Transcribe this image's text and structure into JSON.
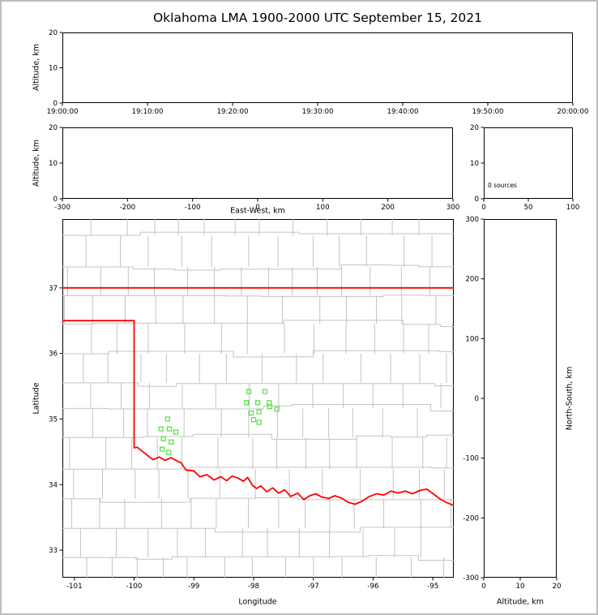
{
  "figure": {
    "title": "Oklahoma LMA 1900-2000 UTC September 15, 2021"
  },
  "colors": {
    "axis": "#000000",
    "text": "#000000",
    "county_line": "#c3c3c3",
    "state_border": "#ff0000",
    "station_marker": "#55dd44"
  },
  "chart_data": [
    {
      "id": "time-altitude",
      "type": "scatter",
      "title": "",
      "xlabel": "",
      "ylabel": "Altitude, km",
      "xtick_labels": [
        "19:00:00",
        "19:10:00",
        "19:20:00",
        "19:30:00",
        "19:40:00",
        "19:50:00",
        "20:00:00"
      ],
      "ylim": [
        0,
        20
      ],
      "yticks": [
        0,
        10,
        20
      ],
      "series": []
    },
    {
      "id": "eastwest-altitude",
      "type": "scatter",
      "xlabel": "East-West, km",
      "ylabel": "Altitude, km",
      "xlim": [
        -300,
        300
      ],
      "xticks": [
        -300,
        -200,
        -100,
        0,
        100,
        200,
        300
      ],
      "ylim": [
        0,
        20
      ],
      "yticks": [
        0,
        10,
        20
      ],
      "series": []
    },
    {
      "id": "altitude-source-histogram",
      "type": "line",
      "annotation": "0 sources",
      "xlim": [
        0,
        100
      ],
      "xticks": [
        0,
        50,
        100
      ],
      "ylim": [
        0,
        20
      ],
      "yticks": [
        0,
        10,
        20
      ],
      "series": []
    },
    {
      "id": "plan-view-map",
      "type": "scatter",
      "xlabel": "Longitude",
      "ylabel": "Latitude",
      "xlim": [
        -101.2,
        -94.65
      ],
      "xticks": [
        -101,
        -100,
        -99,
        -98,
        -97,
        -96,
        -95
      ],
      "ylim": [
        32.58,
        38.05
      ],
      "yticks": [
        33,
        34,
        35,
        36,
        37
      ],
      "counties": {
        "seed": 11,
        "lat_step": 0.44,
        "lon_step": 0.52
      },
      "state_border": [
        [
          [
            -101.2,
            37.0
          ],
          [
            -94.65,
            37.0
          ]
        ],
        [
          [
            -101.2,
            36.5
          ],
          [
            -100.0,
            36.5
          ],
          [
            -100.0,
            34.56
          ],
          [
            -99.95,
            34.57
          ],
          [
            -99.85,
            34.5
          ],
          [
            -99.77,
            34.44
          ],
          [
            -99.68,
            34.38
          ],
          [
            -99.58,
            34.42
          ],
          [
            -99.48,
            34.37
          ],
          [
            -99.38,
            34.41
          ],
          [
            -99.28,
            34.36
          ],
          [
            -99.21,
            34.33
          ],
          [
            -99.13,
            34.22
          ],
          [
            -99.0,
            34.21
          ],
          [
            -98.9,
            34.12
          ],
          [
            -98.78,
            34.15
          ],
          [
            -98.66,
            34.07
          ],
          [
            -98.55,
            34.12
          ],
          [
            -98.45,
            34.06
          ],
          [
            -98.36,
            34.13
          ],
          [
            -98.26,
            34.1
          ],
          [
            -98.17,
            34.05
          ],
          [
            -98.1,
            34.11
          ],
          [
            -98.02,
            33.99
          ],
          [
            -97.95,
            33.94
          ],
          [
            -97.88,
            33.98
          ],
          [
            -97.78,
            33.89
          ],
          [
            -97.68,
            33.95
          ],
          [
            -97.58,
            33.87
          ],
          [
            -97.48,
            33.92
          ],
          [
            -97.38,
            33.82
          ],
          [
            -97.26,
            33.87
          ],
          [
            -97.16,
            33.77
          ],
          [
            -97.06,
            33.83
          ],
          [
            -96.96,
            33.86
          ],
          [
            -96.86,
            33.81
          ],
          [
            -96.74,
            33.79
          ],
          [
            -96.64,
            33.83
          ],
          [
            -96.52,
            33.79
          ],
          [
            -96.42,
            33.73
          ],
          [
            -96.3,
            33.7
          ],
          [
            -96.18,
            33.75
          ],
          [
            -96.06,
            33.82
          ],
          [
            -95.94,
            33.86
          ],
          [
            -95.82,
            33.84
          ],
          [
            -95.7,
            33.9
          ],
          [
            -95.58,
            33.87
          ],
          [
            -95.46,
            33.9
          ],
          [
            -95.34,
            33.86
          ],
          [
            -95.22,
            33.91
          ],
          [
            -95.1,
            33.93
          ],
          [
            -94.98,
            33.85
          ],
          [
            -94.88,
            33.78
          ],
          [
            -94.78,
            33.73
          ],
          [
            -94.65,
            33.68
          ]
        ]
      ],
      "stations": [
        [
          -98.08,
          35.42
        ],
        [
          -97.81,
          35.42
        ],
        [
          -98.12,
          35.25
        ],
        [
          -97.93,
          35.25
        ],
        [
          -97.74,
          35.25
        ],
        [
          -98.04,
          35.09
        ],
        [
          -97.91,
          35.11
        ],
        [
          -97.73,
          35.19
        ],
        [
          -97.61,
          35.15
        ],
        [
          -98.0,
          34.99
        ],
        [
          -97.91,
          34.95
        ],
        [
          -99.44,
          35.0
        ],
        [
          -99.55,
          34.85
        ],
        [
          -99.41,
          34.85
        ],
        [
          -99.3,
          34.8
        ],
        [
          -99.51,
          34.7
        ],
        [
          -99.38,
          34.65
        ],
        [
          -99.53,
          34.54
        ],
        [
          -99.42,
          34.49
        ]
      ]
    },
    {
      "id": "altitude-northsouth",
      "type": "scatter",
      "xlabel": "Altitude, km",
      "ylabel": "North-South, km",
      "xlim": [
        0,
        20
      ],
      "xticks": [
        0,
        10,
        20
      ],
      "ylim": [
        -300,
        300
      ],
      "yticks": [
        300,
        200,
        100,
        0,
        -100,
        -200,
        -300
      ],
      "series": []
    }
  ]
}
